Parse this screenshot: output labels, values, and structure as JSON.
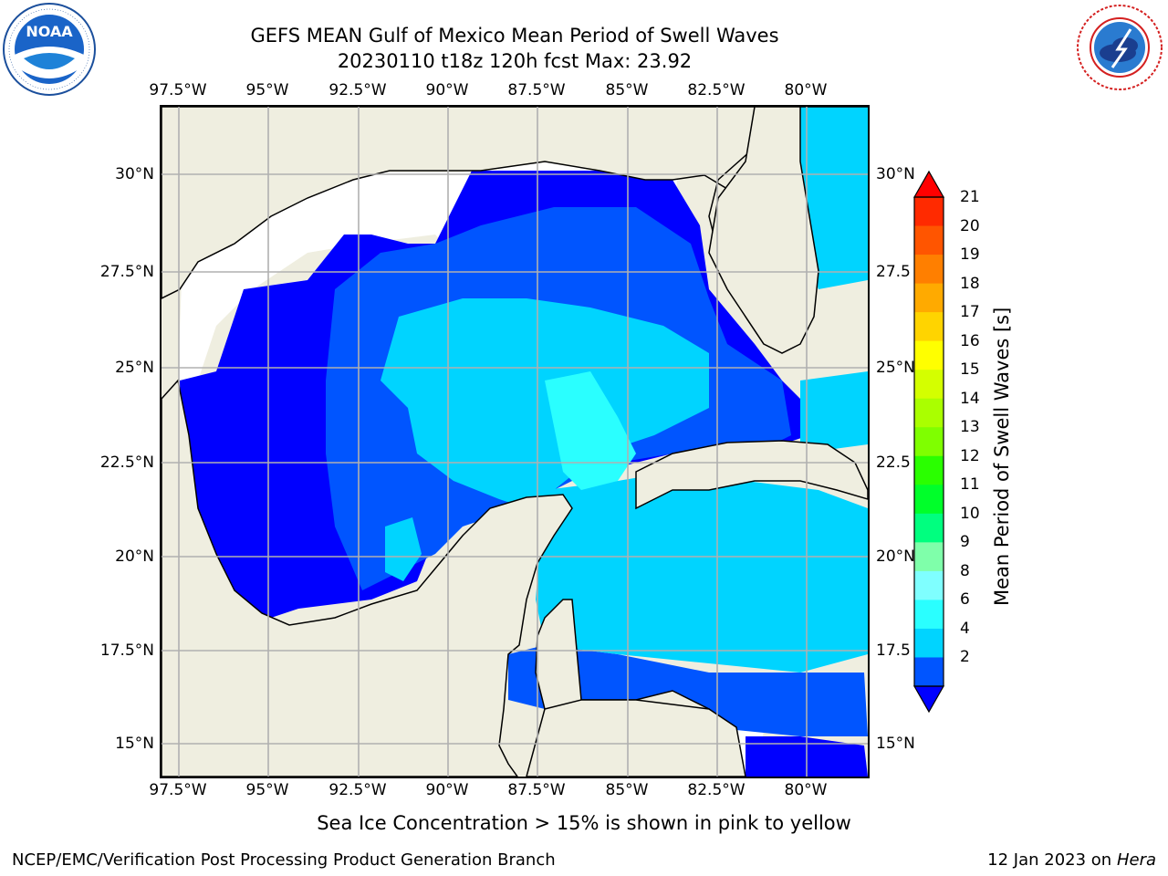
{
  "header": {
    "title_line1": "GEFS MEAN Gulf of Mexico Mean Period of Swell Waves",
    "title_line2": "20230110 t18z 120h fcst   Max: 23.92"
  },
  "logos": {
    "left": {
      "name": "noaa-logo",
      "text": "NOAA",
      "ring_text": "NATIONAL OCEANIC AND ATMOSPHERIC ADMINISTRATION · U.S. DEPARTMENT OF COMMERCE"
    },
    "right": {
      "name": "nws-logo",
      "ring_text": "NATIONAL WEATHER SERVICE"
    }
  },
  "axes": {
    "lon_labels": [
      "97.5°W",
      "95°W",
      "92.5°W",
      "90°W",
      "87.5°W",
      "85°W",
      "82.5°W",
      "80°W"
    ],
    "lat_labels_left": [
      "30°N",
      "27.5°N",
      "25°N",
      "22.5°N",
      "20°N",
      "17.5°N",
      "15°N"
    ],
    "lat_labels_right": [
      "30°N",
      "27.5",
      "25°N",
      "22.5",
      "20°N",
      "17.5",
      "15°N"
    ]
  },
  "colorbar": {
    "label": "Mean Period of Swell Waves [s]",
    "ticks": [
      "21",
      "20",
      "19",
      "18",
      "17",
      "16",
      "15",
      "14",
      "13",
      "12",
      "11",
      "10",
      "9",
      "8",
      "6",
      "4",
      "2"
    ],
    "colors": [
      "#ff2a00",
      "#ff5500",
      "#ff7f00",
      "#ffaa00",
      "#ffd400",
      "#ffff00",
      "#d4ff00",
      "#aaff00",
      "#7fff00",
      "#2aff00",
      "#00ff2a",
      "#00ff7f",
      "#7fffaa",
      "#7fffff",
      "#2affff",
      "#00d4ff",
      "#0055ff"
    ],
    "under_color": "#0000ff",
    "over_color": "#ff0000"
  },
  "map": {
    "land_color": "#efeee0",
    "legend_note": "Sea Ice Concentration > 15% is shown in pink to yellow"
  },
  "footer": {
    "left": "NCEP/EMC/Verification Post Processing Product Generation Branch",
    "date": "12 Jan 2023 on ",
    "machine": "Hera"
  }
}
